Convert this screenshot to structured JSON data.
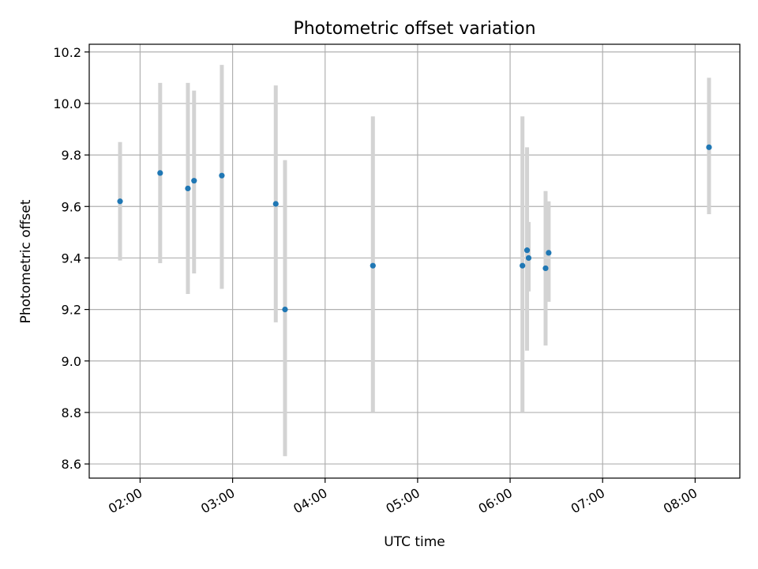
{
  "chart_data": {
    "type": "scatter",
    "title": "Photometric offset variation",
    "xlabel": "UTC time",
    "ylabel": "Photometric offset",
    "xlim": [
      "01:27",
      "08:29"
    ],
    "ylim": [
      8.545,
      10.23
    ],
    "xticks": [
      "02:00",
      "03:00",
      "04:00",
      "05:00",
      "06:00",
      "07:00",
      "08:00"
    ],
    "yticks": [
      "8.6",
      "8.8",
      "9.0",
      "9.2",
      "9.4",
      "9.6",
      "9.8",
      "10.0",
      "10.2"
    ],
    "grid": true,
    "colors": {
      "points": "#1f77b4",
      "errorbars": "#d3d3d3",
      "grid": "#b0b0b0"
    },
    "series": [
      {
        "points": [
          {
            "x": "01:47",
            "y": 9.62,
            "ylow": 9.39,
            "yhigh": 9.85
          },
          {
            "x": "02:13",
            "y": 9.73,
            "ylow": 9.38,
            "yhigh": 10.08
          },
          {
            "x": "02:31",
            "y": 9.67,
            "ylow": 9.26,
            "yhigh": 10.08
          },
          {
            "x": "02:35",
            "y": 9.7,
            "ylow": 9.34,
            "yhigh": 10.05
          },
          {
            "x": "02:53",
            "y": 9.72,
            "ylow": 9.28,
            "yhigh": 10.15
          },
          {
            "x": "03:28",
            "y": 9.61,
            "ylow": 9.15,
            "yhigh": 10.07
          },
          {
            "x": "03:34",
            "y": 9.2,
            "ylow": 8.63,
            "yhigh": 9.78
          },
          {
            "x": "04:31",
            "y": 9.37,
            "ylow": 8.8,
            "yhigh": 9.95
          },
          {
            "x": "06:08",
            "y": 9.37,
            "ylow": 8.8,
            "yhigh": 9.95
          },
          {
            "x": "06:11",
            "y": 9.43,
            "ylow": 9.04,
            "yhigh": 9.83
          },
          {
            "x": "06:12",
            "y": 9.4,
            "ylow": 9.27,
            "yhigh": 9.54
          },
          {
            "x": "06:23",
            "y": 9.36,
            "ylow": 9.06,
            "yhigh": 9.66
          },
          {
            "x": "06:25",
            "y": 9.42,
            "ylow": 9.23,
            "yhigh": 9.62
          },
          {
            "x": "08:09",
            "y": 9.83,
            "ylow": 9.57,
            "yhigh": 10.1
          }
        ]
      }
    ]
  }
}
